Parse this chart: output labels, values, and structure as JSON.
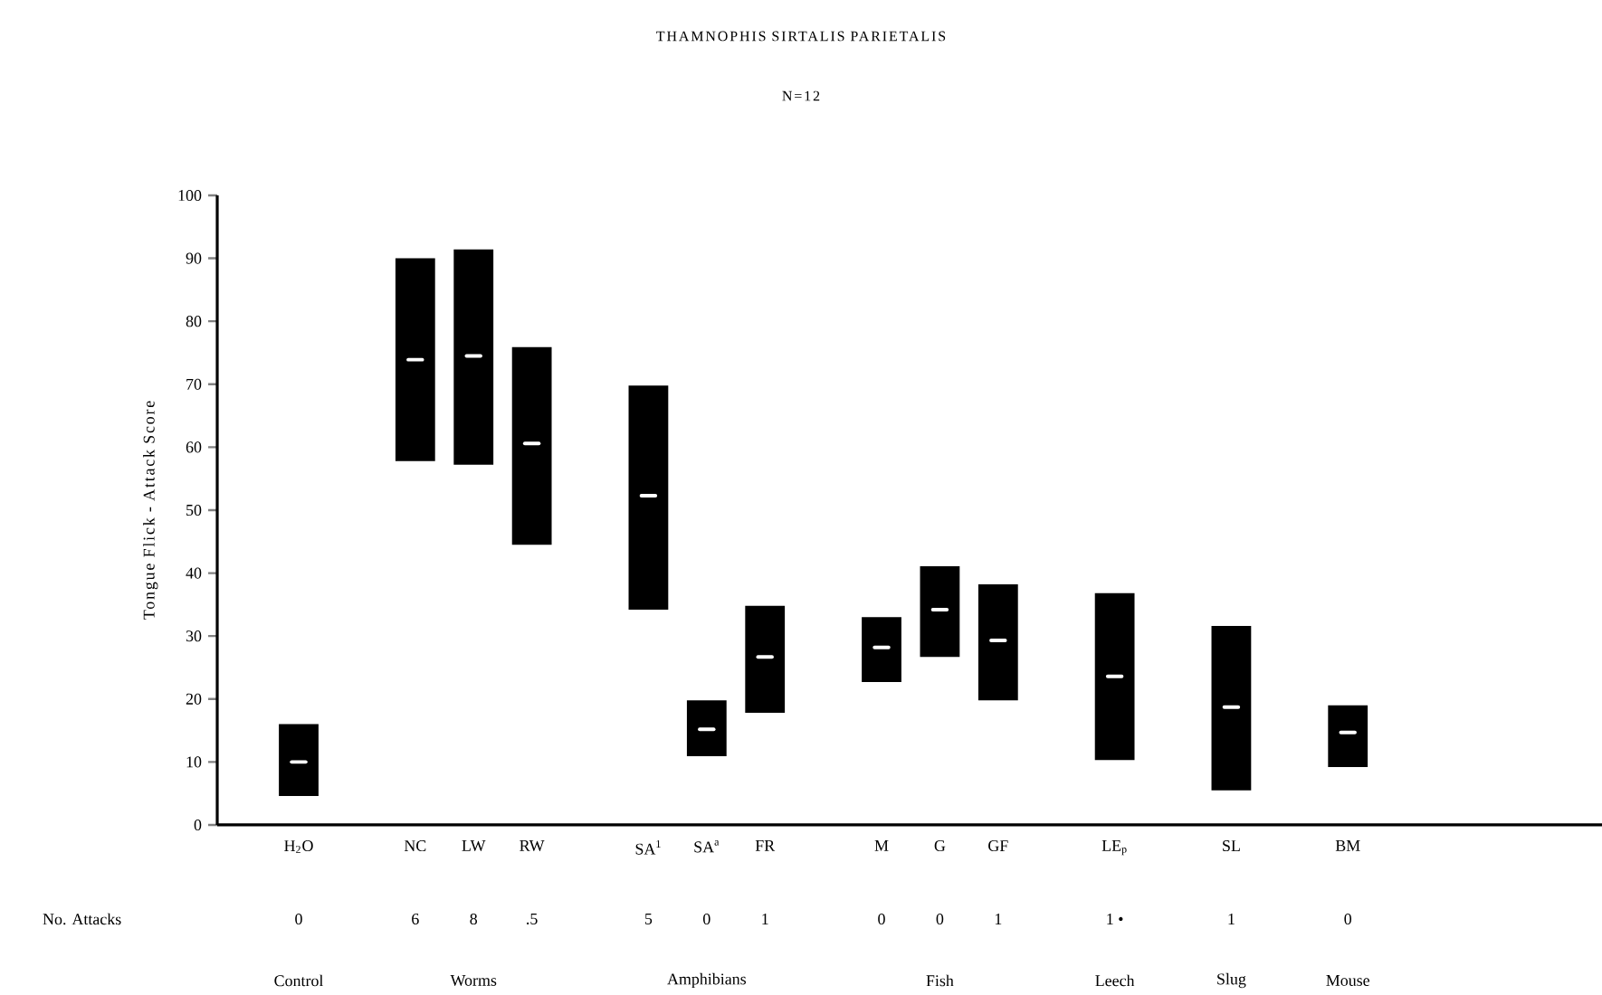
{
  "chart_data": {
    "type": "box",
    "title": "THAMNOPHIS SIRTALIS PARIETALIS",
    "subtitle": "N=12",
    "ylabel": "Tongue Flick - Attack Score",
    "categories": [
      "H$_{2}$O",
      null,
      "NC",
      "LW",
      "RW",
      null,
      "SA$^{1}$",
      "SA$^{a}$",
      "FR",
      null,
      "M",
      "G",
      "GF",
      null,
      "LE$_{p}$",
      null,
      "SL",
      null,
      "BM"
    ],
    "color": "#000000",
    "boxes": [
      {
        "low": 4.6,
        "q1": 4.6,
        "median": 10,
        "q3": 16,
        "high": 16
      },
      null,
      {
        "low": 57.8,
        "q1": 57.8,
        "median": 73.9,
        "q3": 90,
        "high": 90
      },
      {
        "low": 57.2,
        "q1": 57.2,
        "median": 74.5,
        "q3": 91.4,
        "high": 91.4
      },
      {
        "low": 44.5,
        "q1": 44.5,
        "median": 60.6,
        "q3": 75.9,
        "high": 75.9
      },
      null,
      {
        "low": 34.2,
        "q1": 34.2,
        "median": 52.3,
        "q3": 69.8,
        "high": 69.8
      },
      {
        "low": 10.9,
        "q1": 10.9,
        "median": 15.2,
        "q3": 19.8,
        "high": 19.8
      },
      {
        "low": 17.8,
        "q1": 17.8,
        "median": 26.7,
        "q3": 34.8,
        "high": 34.8
      },
      null,
      {
        "low": 22.7,
        "q1": 22.7,
        "median": 28.2,
        "q3": 33,
        "high": 33
      },
      {
        "low": 26.7,
        "q1": 26.7,
        "median": 34.2,
        "q3": 41.1,
        "high": 41.1
      },
      {
        "low": 19.8,
        "q1": 19.8,
        "median": 29.3,
        "q3": 38.2,
        "high": 38.2
      },
      null,
      {
        "low": 10.3,
        "q1": 10.3,
        "median": 23.6,
        "q3": 36.8,
        "high": 36.8
      },
      null,
      {
        "low": 5.5,
        "q1": 5.5,
        "median": 18.7,
        "q3": 31.6,
        "high": 31.6
      },
      null,
      {
        "low": 9.2,
        "q1": 9.2,
        "median": 14.7,
        "q3": 19,
        "high": 19
      }
    ],
    "ylim": [
      0,
      100
    ],
    "yticks": [
      0,
      10,
      20,
      30,
      40,
      50,
      60,
      70,
      80,
      90,
      100
    ],
    "annotations": [
      "No. Attacks",
      "0",
      "6",
      "8",
      ".5",
      "5",
      "0",
      "1",
      "0",
      "0",
      "1",
      "1 •",
      "1",
      "0",
      "Control",
      "Worms",
      "Amphibians",
      "Fish",
      "Leech",
      "Slug",
      "Mouse"
    ]
  }
}
